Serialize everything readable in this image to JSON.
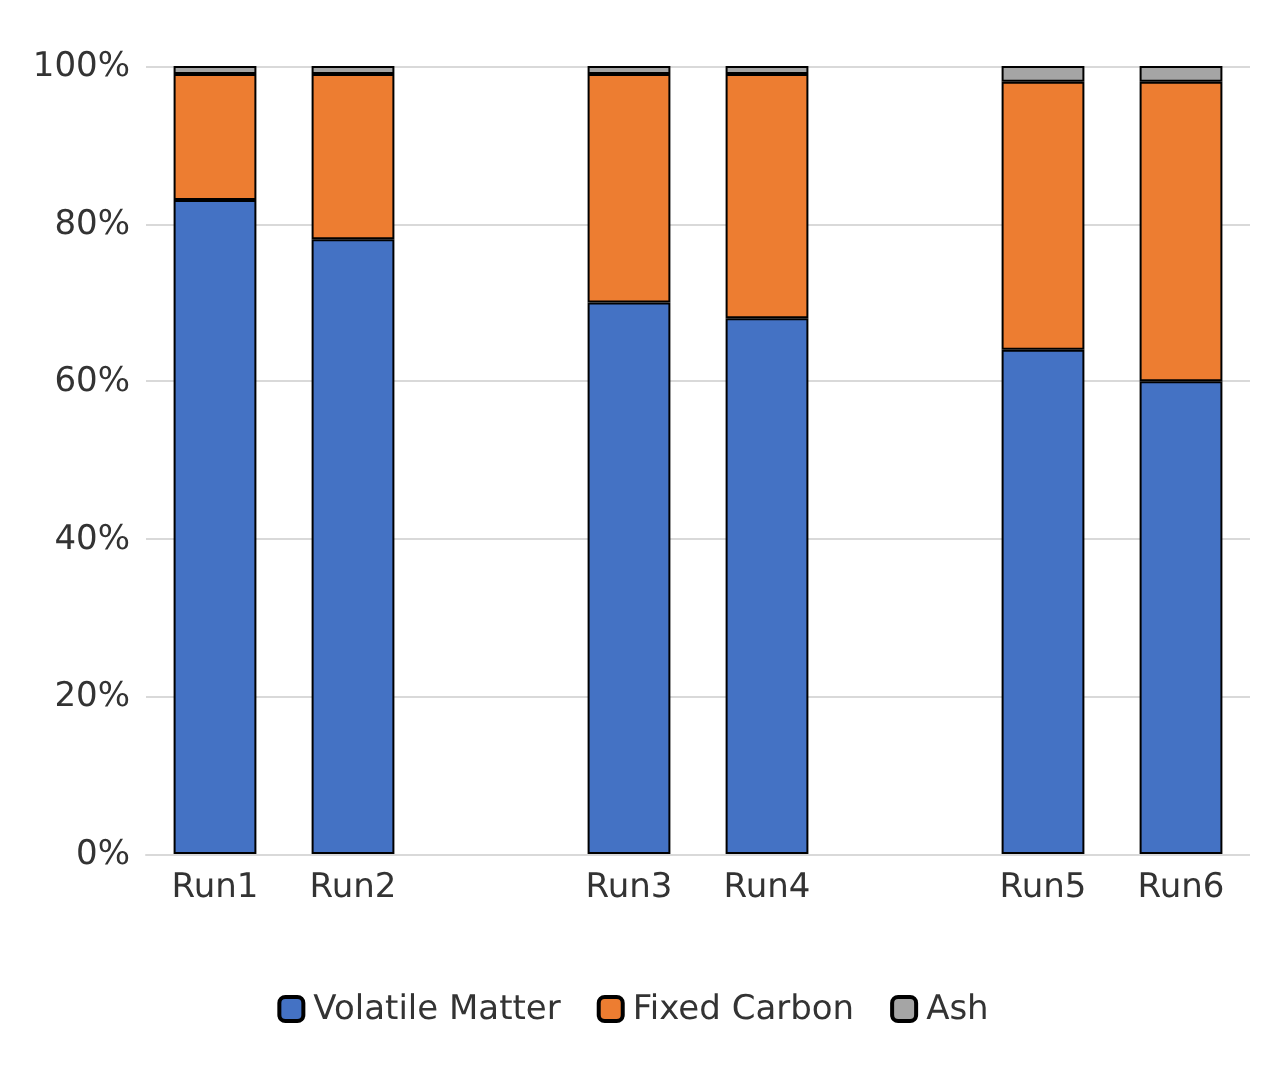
{
  "chart_data": {
    "type": "bar",
    "stacked": true,
    "categories": [
      "Run1",
      "Run2",
      null,
      "Run3",
      "Run4",
      null,
      "Run5",
      "Run6"
    ],
    "series": [
      {
        "name": "Volatile Matter",
        "color": "#4472c4",
        "values": [
          83,
          78,
          null,
          70,
          68,
          null,
          64,
          60
        ]
      },
      {
        "name": "Fixed Carbon",
        "color": "#ed7d31",
        "values": [
          16,
          21,
          null,
          29,
          31,
          null,
          34,
          38
        ]
      },
      {
        "name": "Ash",
        "color": "#a5a5a5",
        "values": [
          1,
          1,
          null,
          1,
          1,
          null,
          2,
          2
        ]
      }
    ],
    "ylim": [
      0,
      100
    ],
    "yticks": [
      {
        "value": 0,
        "label": "0%"
      },
      {
        "value": 20,
        "label": "20%"
      },
      {
        "value": 40,
        "label": "40%"
      },
      {
        "value": 60,
        "label": "60%"
      },
      {
        "value": 80,
        "label": "80%"
      },
      {
        "value": 100,
        "label": "100%"
      }
    ],
    "grid": "y",
    "legend": "bottom"
  }
}
